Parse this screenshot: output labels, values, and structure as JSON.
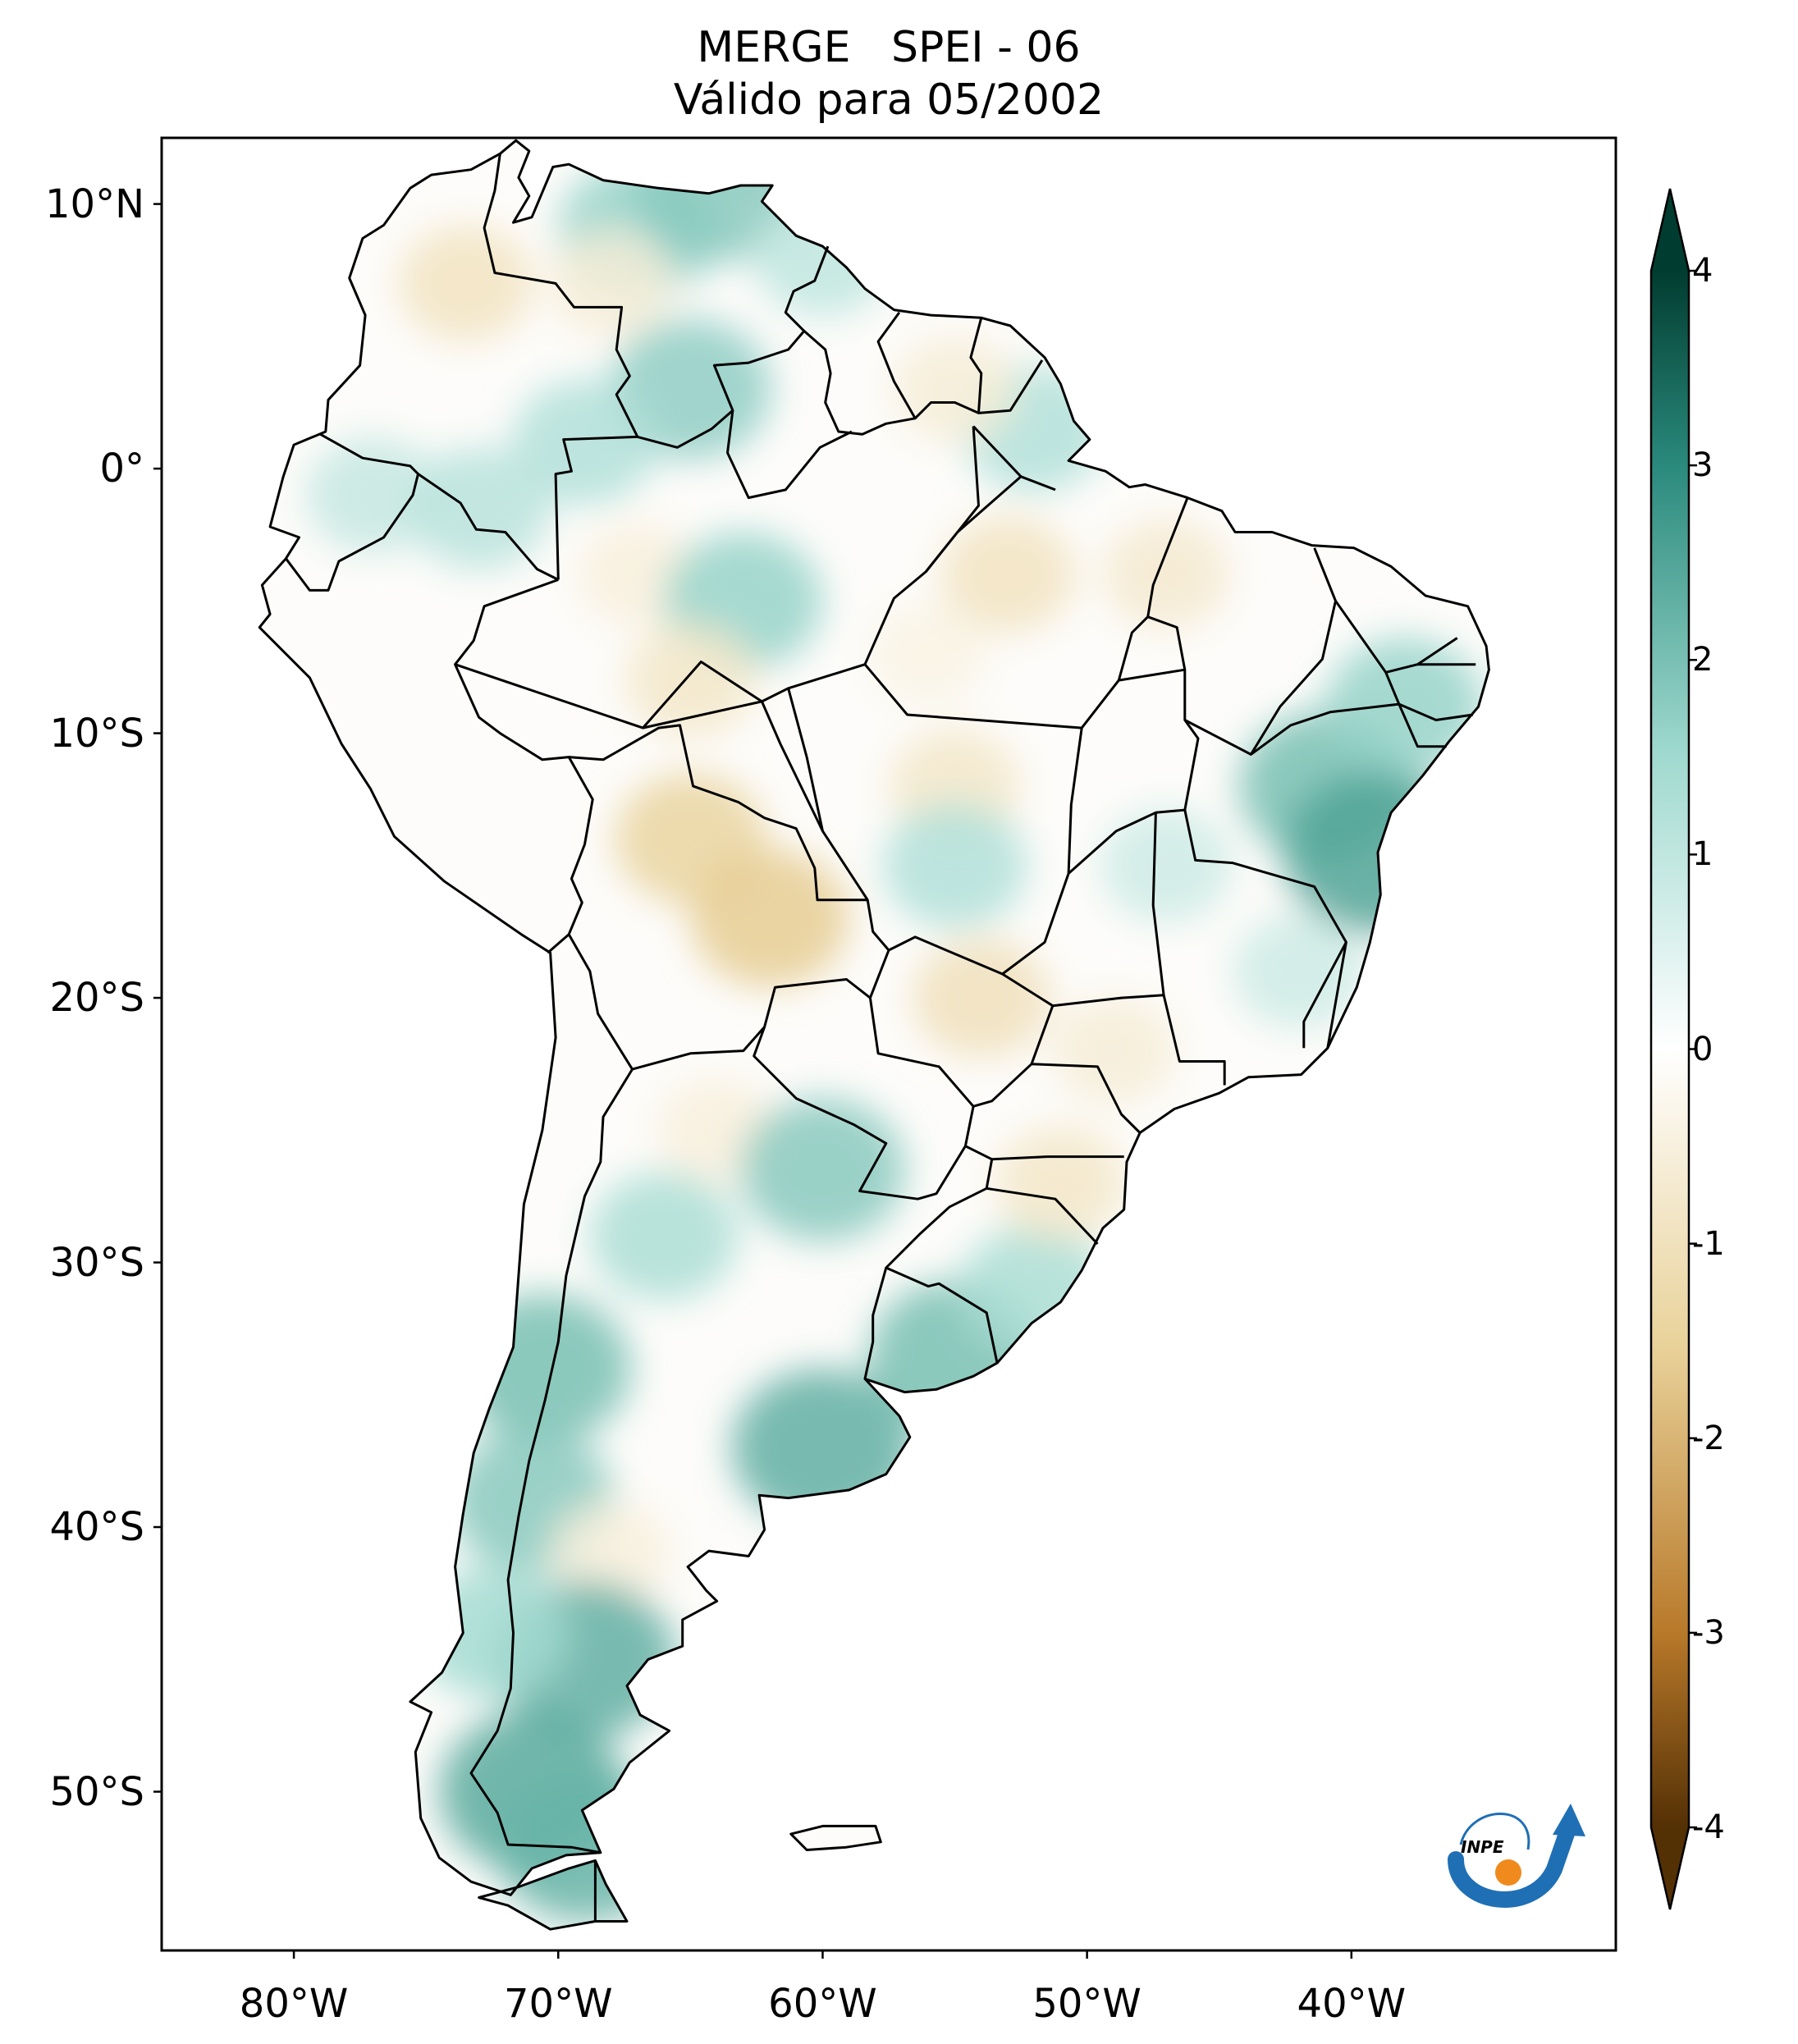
{
  "title": {
    "line1": "MERGE   SPEI - 06",
    "line2": "Válido para 05/2002"
  },
  "map": {
    "region": "South America",
    "extent": {
      "lon": [
        -85,
        -30
      ],
      "lat": [
        -56,
        12.5
      ]
    },
    "lat_ticks": [
      {
        "value": 10,
        "label": "10°N"
      },
      {
        "value": 0,
        "label": "0°"
      },
      {
        "value": -10,
        "label": "10°S"
      },
      {
        "value": -20,
        "label": "20°S"
      },
      {
        "value": -30,
        "label": "30°S"
      },
      {
        "value": -40,
        "label": "40°S"
      },
      {
        "value": -50,
        "label": "50°S"
      }
    ],
    "lon_ticks": [
      {
        "value": -80,
        "label": "80°W"
      },
      {
        "value": -70,
        "label": "70°W"
      },
      {
        "value": -60,
        "label": "60°W"
      },
      {
        "value": -50,
        "label": "50°W"
      },
      {
        "value": -40,
        "label": "40°W"
      }
    ],
    "anomaly_regions": [
      {
        "lon": -67,
        "lat": 9,
        "value": 1.6
      },
      {
        "lon": -64,
        "lat": 10.5,
        "value": 1.8
      },
      {
        "lon": -60,
        "lat": 8,
        "value": 1.0
      },
      {
        "lon": -73.5,
        "lat": 7,
        "value": -0.9
      },
      {
        "lon": -68,
        "lat": 7,
        "value": -0.6
      },
      {
        "lon": -65,
        "lat": 3,
        "value": 1.7
      },
      {
        "lon": -69,
        "lat": 1,
        "value": 1.2
      },
      {
        "lon": -52,
        "lat": 1.5,
        "value": 1.2
      },
      {
        "lon": -55,
        "lat": 3,
        "value": -0.6
      },
      {
        "lon": -77,
        "lat": -1,
        "value": 0.9
      },
      {
        "lon": -73,
        "lat": -1.5,
        "value": 1.1
      },
      {
        "lon": -67,
        "lat": -4,
        "value": -0.5
      },
      {
        "lon": -63,
        "lat": -5,
        "value": 1.6
      },
      {
        "lon": -65,
        "lat": -8,
        "value": -0.8
      },
      {
        "lon": -53,
        "lat": -4,
        "value": -0.9
      },
      {
        "lon": -47,
        "lat": -4,
        "value": -0.7
      },
      {
        "lon": -56,
        "lat": -7,
        "value": -0.4
      },
      {
        "lon": -65,
        "lat": -14,
        "value": -1.4
      },
      {
        "lon": -62,
        "lat": -17,
        "value": -1.6
      },
      {
        "lon": -55,
        "lat": -12,
        "value": -0.8
      },
      {
        "lon": -55,
        "lat": -15,
        "value": 1.2
      },
      {
        "lon": -47,
        "lat": -15,
        "value": 0.8
      },
      {
        "lon": -54,
        "lat": -20,
        "value": -1.0
      },
      {
        "lon": -49,
        "lat": -22,
        "value": -0.6
      },
      {
        "lon": -41,
        "lat": -12,
        "value": 2.0
      },
      {
        "lon": -39,
        "lat": -14.5,
        "value": 2.5
      },
      {
        "lon": -38,
        "lat": -9,
        "value": 1.6
      },
      {
        "lon": -42,
        "lat": -19,
        "value": 0.8
      },
      {
        "lon": -64,
        "lat": -25,
        "value": -0.5
      },
      {
        "lon": -60,
        "lat": -26.5,
        "value": 1.8
      },
      {
        "lon": -66,
        "lat": -29,
        "value": 1.3
      },
      {
        "lon": -70.5,
        "lat": -34,
        "value": 2.0
      },
      {
        "lon": -71,
        "lat": -39,
        "value": 1.8
      },
      {
        "lon": -60,
        "lat": -37,
        "value": 2.3
      },
      {
        "lon": -55,
        "lat": -33.5,
        "value": 2.0
      },
      {
        "lon": -52,
        "lat": -31,
        "value": 1.3
      },
      {
        "lon": -51,
        "lat": -27,
        "value": -0.8
      },
      {
        "lon": -68,
        "lat": -41,
        "value": -0.5
      },
      {
        "lon": -69,
        "lat": -45,
        "value": 2.3
      },
      {
        "lon": -71,
        "lat": -50,
        "value": 2.4
      },
      {
        "lon": -69,
        "lat": -52,
        "value": 2.2
      },
      {
        "lon": -72.5,
        "lat": -44,
        "value": 1.4
      }
    ],
    "colors": {
      "ocean": "#ffffff",
      "border": "#000000"
    }
  },
  "colorbar": {
    "ticks": [
      {
        "value": 4,
        "label": "4"
      },
      {
        "value": 3,
        "label": "3"
      },
      {
        "value": 2,
        "label": "2"
      },
      {
        "value": 1,
        "label": "1"
      },
      {
        "value": 0,
        "label": "0"
      },
      {
        "value": -1,
        "label": "-1"
      },
      {
        "value": -2,
        "label": "-2"
      },
      {
        "value": -3,
        "label": "-3"
      },
      {
        "value": -4,
        "label": "-4"
      }
    ],
    "range": [
      -4,
      4
    ],
    "colors": {
      "max": "#013c30",
      "high": "#2a8a7c",
      "mid_high": "#9fd9cf",
      "zero": "#ffffff",
      "mid_low": "#e9d29a",
      "low": "#b8792a",
      "min": "#543005"
    }
  },
  "logo": {
    "text": "INPE",
    "colors": {
      "arc": "#1f6fb5",
      "dot": "#f08a1c"
    }
  }
}
